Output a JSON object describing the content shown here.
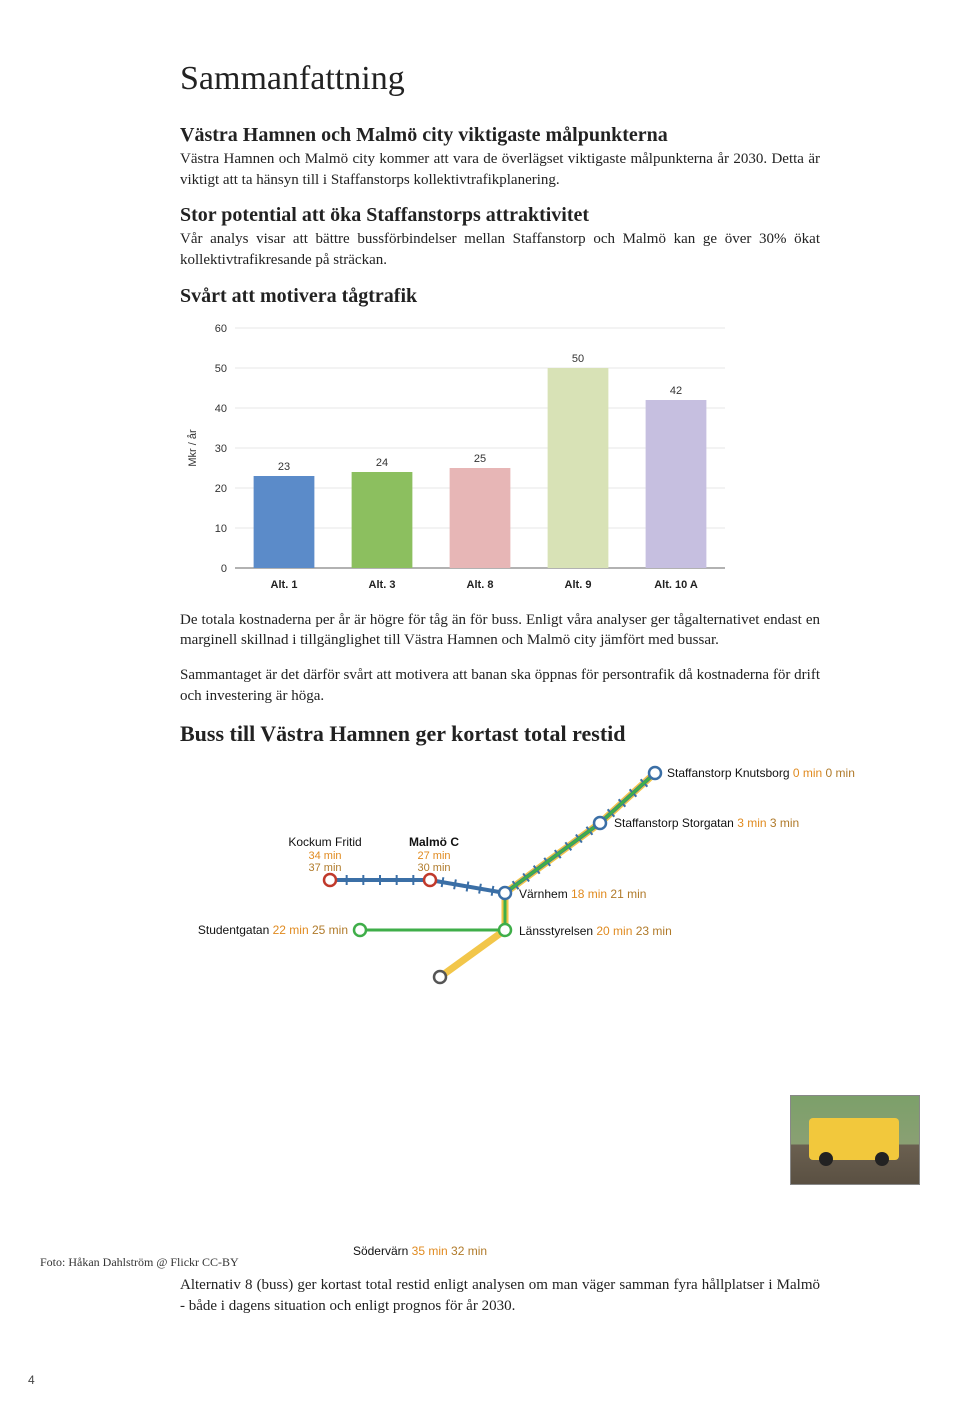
{
  "page_title": "Sammanfattning",
  "section1": {
    "heading": "Västra Hamnen och Malmö city viktigaste målpunkterna",
    "body": "Västra Hamnen och Malmö city kommer att vara de överlägset viktigaste målpunkterna år 2030. Detta är viktigt att ta hänsyn till i Staffanstorps kollektivtrafikplanering."
  },
  "section2": {
    "heading": "Stor potential att öka Staffanstorps attraktivitet",
    "body": "Vår analys visar att bättre bussförbindelser mellan Staffanstorp och Malmö kan ge över 30% ökat kollektivtrafikresande på sträckan."
  },
  "section3": {
    "heading": "Svårt att motivera tågtrafik"
  },
  "chart": {
    "type": "bar",
    "ylabel": "Mkr / år",
    "ylim": [
      0,
      60
    ],
    "ytick_step": 10,
    "bar_width": 0.62,
    "background_color": "#ffffff",
    "grid_color": "#d0d0d0",
    "label_fontsize": 11,
    "categories": [
      "Alt. 1",
      "Alt. 3",
      "Alt. 8",
      "Alt. 9",
      "Alt. 10 A"
    ],
    "values": [
      23,
      24,
      25,
      50,
      42
    ],
    "bar_colors": [
      "#5b8bc9",
      "#8cbf5f",
      "#e7b6b6",
      "#d8e2b6",
      "#c6bfe0"
    ]
  },
  "chart_caption1": "De totala kostnaderna per år är högre för tåg än för buss. Enligt våra analyser ger tågalternativet endast en marginell skillnad i tillgänglighet till Västra Hamnen och Malmö city jämfört med bussar.",
  "chart_caption2": "Sammantaget är det därför svårt att motivera att banan ska öppnas för persontrafik då kostnaderna för drift och investering är höga.",
  "section4": {
    "heading": "Buss till Västra Hamnen ger kortast total restid"
  },
  "route": {
    "line_colors": {
      "blue": "#3b6fa6",
      "green": "#3fae49",
      "yellow": "#f2c64a"
    },
    "stop_radius": 6,
    "stop_stroke": "#3b6fa6",
    "stops": {
      "knutsborg": {
        "name": "Staffanstorp Knutsborg",
        "t1": "0 min",
        "t2": "0 min"
      },
      "storgatan": {
        "name": "Staffanstorp Storgatan",
        "t1": "3 min",
        "t2": "3 min"
      },
      "varnhem": {
        "name": "Värnhem",
        "t1": "18 min",
        "t2": "21 min"
      },
      "lansstyr": {
        "name": "Länsstyrelsen",
        "t1": "20 min",
        "t2": "23 min"
      },
      "malmoc": {
        "name": "Malmö C",
        "t1": "27 min",
        "t2": "30 min"
      },
      "kockum": {
        "name": "Kockum Fritid",
        "t1": "34 min",
        "t2": "37 min"
      },
      "student": {
        "name": "Studentgatan",
        "t1": "22 min",
        "t2": "25 min"
      },
      "sodervarn": {
        "name": "Södervärn",
        "t1": "35 min",
        "t2": "32 min"
      }
    }
  },
  "photo_credit": "Foto: Håkan Dahlström @ Flickr CC-BY",
  "bottom_para": "Alternativ 8 (buss) ger kortast total restid enligt analysen om man väger samman fyra hållplatser i Malmö - både i dagens situation och enligt prognos för år 2030.",
  "page_number": "4"
}
